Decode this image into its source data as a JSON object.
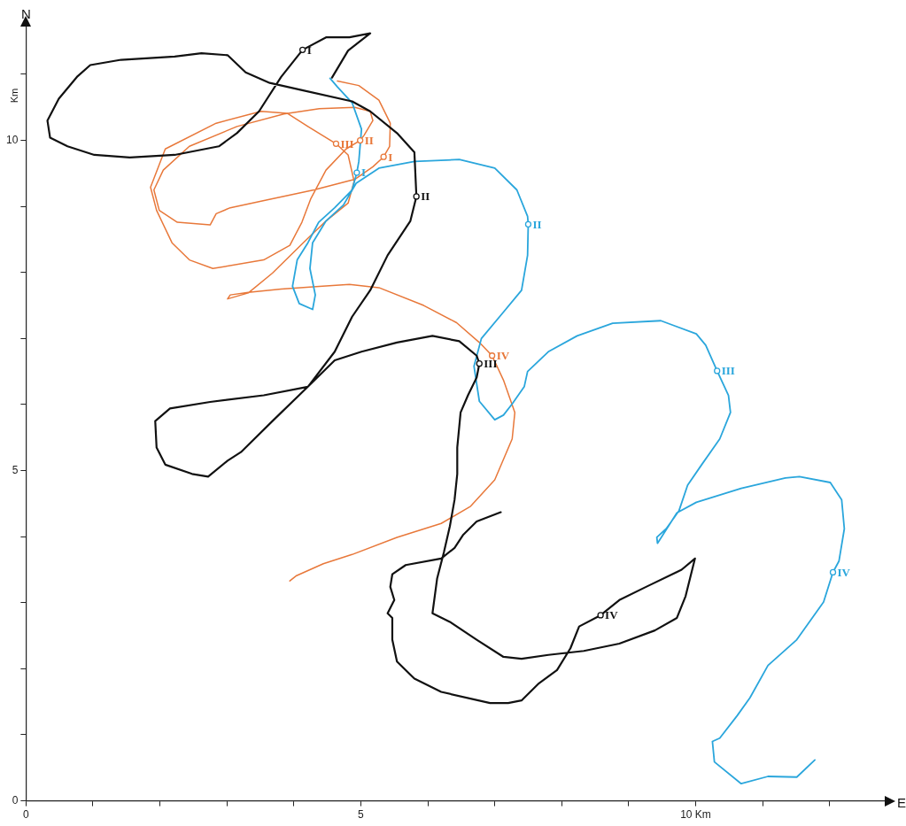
{
  "chart_data": {
    "type": "line",
    "xlabel": "E",
    "ylabel": "N",
    "marker": "none",
    "xlim": [
      0,
      12.85
    ],
    "ylim": [
      0,
      11.75
    ],
    "xticks": [
      0,
      {
        "value": 1,
        "label": null
      },
      {
        "value": 2,
        "label": null
      },
      {
        "value": 3,
        "label": null
      },
      {
        "value": 4,
        "label": null
      },
      5,
      {
        "value": 6,
        "label": null
      },
      {
        "value": 7,
        "label": null
      },
      {
        "value": 8,
        "label": null
      },
      {
        "value": 9,
        "label": null
      },
      {
        "value": 10,
        "label": "10 Km"
      },
      {
        "value": 11,
        "label": null
      },
      {
        "value": 12,
        "label": null
      }
    ],
    "yticks": [
      0,
      {
        "value": 1,
        "label": null
      },
      {
        "value": 2,
        "label": null
      },
      {
        "value": 3,
        "label": null
      },
      {
        "value": 4,
        "label": null
      },
      5,
      {
        "value": 6,
        "label": null
      },
      {
        "value": 7,
        "label": null
      },
      {
        "value": 8,
        "label": null
      },
      {
        "value": 9,
        "label": null
      },
      10,
      {
        "value": 11,
        "label": null
      }
    ],
    "annotations": [
      "Km",
      {
        "text": "I",
        "x": 4.13,
        "y": 11.37
      },
      {
        "text": "II",
        "x": 5.83,
        "y": 9.15
      },
      {
        "text": "III",
        "x": 6.77,
        "y": 6.62
      },
      {
        "text": "IV",
        "x": 8.58,
        "y": 2.81
      },
      {
        "text": "I",
        "x": 4.94,
        "y": 9.51
      },
      {
        "text": "II",
        "x": 7.5,
        "y": 8.73
      },
      {
        "text": "III",
        "x": 10.32,
        "y": 6.51
      },
      {
        "text": "IV",
        "x": 12.05,
        "y": 3.46
      },
      {
        "text": "I",
        "x": 5.34,
        "y": 9.75
      },
      {
        "text": "II",
        "x": 4.99,
        "y": 10.0
      },
      {
        "text": "III",
        "x": 4.63,
        "y": 9.95
      },
      {
        "text": "IV",
        "x": 6.96,
        "y": 6.74
      }
    ],
    "series": [
      {
        "color": "#111111",
        "x": [
          4.57,
          4.81,
          5.14,
          4.83,
          4.48,
          4.13,
          3.81,
          3.48,
          3.15,
          2.88,
          2.22,
          1.55,
          1.02,
          0.62,
          0.36,
          0.32,
          0.49,
          0.76,
          0.96,
          1.42,
          2.22,
          2.62,
          3.01,
          3.28,
          3.64,
          4.08,
          4.87,
          5.14,
          5.54,
          5.8,
          5.83,
          5.74,
          5.4,
          5.14,
          4.87,
          4.61,
          4.21,
          3.68,
          3.21,
          3.01,
          2.72,
          2.48,
          2.08,
          1.95,
          1.93,
          2.15,
          2.75,
          3.55,
          4.21,
          4.61,
          5.01,
          5.54,
          6.07,
          6.47,
          6.73,
          6.77,
          6.73,
          6.6,
          6.49,
          6.44,
          6.44,
          6.4,
          6.33,
          6.24,
          6.14,
          6.07,
          6.33,
          6.73,
          7.13,
          7.4,
          7.8,
          8.33,
          8.86,
          9.39,
          9.72,
          9.85,
          9.99,
          9.79,
          9.26,
          8.86,
          8.58,
          8.26,
          8.13,
          7.93,
          7.66,
          7.4,
          7.2,
          6.93,
          6.2,
          5.8,
          5.54,
          5.47,
          5.47,
          5.4,
          5.5,
          5.44,
          5.47,
          5.67,
          6.2,
          6.4,
          6.53,
          6.73,
          7.09
        ],
        "values": [
          10.95,
          11.36,
          11.62,
          11.56,
          11.56,
          11.37,
          10.96,
          10.44,
          10.11,
          9.91,
          9.78,
          9.74,
          9.78,
          9.91,
          10.04,
          10.3,
          10.63,
          10.96,
          11.14,
          11.22,
          11.27,
          11.32,
          11.29,
          11.03,
          10.87,
          10.77,
          10.59,
          10.44,
          10.11,
          9.82,
          9.15,
          8.78,
          8.26,
          7.73,
          7.33,
          6.8,
          6.27,
          5.75,
          5.28,
          5.15,
          4.91,
          4.95,
          5.09,
          5.35,
          5.75,
          5.94,
          6.04,
          6.14,
          6.27,
          6.67,
          6.8,
          6.94,
          7.04,
          6.96,
          6.74,
          6.62,
          6.41,
          6.14,
          5.88,
          5.35,
          4.95,
          4.56,
          4.16,
          3.76,
          3.37,
          2.84,
          2.71,
          2.44,
          2.18,
          2.15,
          2.21,
          2.27,
          2.38,
          2.58,
          2.77,
          3.1,
          3.67,
          3.5,
          3.24,
          3.04,
          2.81,
          2.64,
          2.31,
          1.98,
          1.78,
          1.52,
          1.48,
          1.48,
          1.65,
          1.85,
          2.11,
          2.44,
          2.77,
          2.84,
          3.04,
          3.24,
          3.43,
          3.57,
          3.67,
          3.83,
          4.03,
          4.23,
          4.37
        ]
      },
      {
        "color": "#2aa6dc",
        "x": [
          4.54,
          4.65,
          4.87,
          5.01,
          4.97,
          4.94,
          4.87,
          4.61,
          4.37,
          4.21,
          4.05,
          3.98,
          4.08,
          4.28,
          4.32,
          4.24,
          4.28,
          4.48,
          4.74,
          4.93,
          5.27,
          5.8,
          6.47,
          7.0,
          7.33,
          7.49,
          7.5,
          7.49,
          7.4,
          7.13,
          6.8,
          6.69,
          6.77,
          7.0,
          7.13,
          7.26,
          7.44,
          7.49,
          7.8,
          8.23,
          8.76,
          9.48,
          10.01,
          10.15,
          10.32,
          10.49,
          10.52,
          10.36,
          10.09,
          9.88,
          9.75,
          9.56,
          9.42,
          9.43,
          9.72,
          10.01,
          10.68,
          11.34,
          11.55,
          12.01,
          12.18,
          12.22,
          12.14,
          12.05,
          11.91,
          11.51,
          11.08,
          10.81,
          10.62,
          10.36,
          10.25,
          10.28,
          10.68,
          11.08,
          11.51,
          11.78
        ],
        "values": [
          10.94,
          10.81,
          10.57,
          10.17,
          9.68,
          9.51,
          9.25,
          8.98,
          8.76,
          8.45,
          8.19,
          7.79,
          7.53,
          7.44,
          7.66,
          8.06,
          8.45,
          8.78,
          9.02,
          9.35,
          9.58,
          9.68,
          9.71,
          9.58,
          9.25,
          8.85,
          8.73,
          8.26,
          7.73,
          7.4,
          7.0,
          6.58,
          6.05,
          5.77,
          5.84,
          6.01,
          6.27,
          6.5,
          6.8,
          7.04,
          7.23,
          7.27,
          7.07,
          6.9,
          6.51,
          6.14,
          5.88,
          5.48,
          5.09,
          4.78,
          4.39,
          4.12,
          3.99,
          3.9,
          4.36,
          4.52,
          4.73,
          4.89,
          4.91,
          4.82,
          4.56,
          4.12,
          3.63,
          3.46,
          3.01,
          2.44,
          2.05,
          1.56,
          1.29,
          0.95,
          0.9,
          0.59,
          0.26,
          0.37,
          0.36,
          0.62
        ]
      },
      {
        "color": "#e8783a",
        "x": [
          4.65,
          4.97,
          5.27,
          5.44,
          5.43,
          5.34,
          5.18,
          4.91,
          4.3,
          3.51,
          3.05,
          2.84,
          2.75,
          2.26,
          1.99,
          1.91,
          2.05,
          2.44,
          3.15,
          3.85,
          4.38,
          4.91,
          5.14,
          5.18,
          5.05,
          4.99,
          4.78,
          4.48,
          4.25,
          4.12,
          3.94,
          3.55,
          2.79,
          2.44,
          2.18,
          1.95,
          1.86,
          2.08,
          2.84,
          3.51,
          3.9,
          4.21,
          4.63,
          4.81,
          4.9,
          4.81,
          4.48,
          4.14,
          3.68,
          3.32,
          3.01,
          3.05,
          3.32,
          3.81,
          4.38,
          4.83,
          5.27,
          5.94,
          6.43,
          6.77,
          6.96,
          7.13,
          7.3,
          7.26,
          7.0,
          6.64,
          6.2,
          5.54,
          4.87,
          4.44,
          4.04,
          3.94
        ],
        "values": [
          10.9,
          10.83,
          10.61,
          10.26,
          9.91,
          9.75,
          9.6,
          9.41,
          9.25,
          9.08,
          8.98,
          8.89,
          8.72,
          8.76,
          8.94,
          9.25,
          9.55,
          9.91,
          10.21,
          10.4,
          10.48,
          10.5,
          10.44,
          10.3,
          10.08,
          10.0,
          9.87,
          9.55,
          9.11,
          8.76,
          8.41,
          8.19,
          8.06,
          8.19,
          8.45,
          8.94,
          9.29,
          9.87,
          10.26,
          10.44,
          10.41,
          10.21,
          9.95,
          9.78,
          9.38,
          9.05,
          8.78,
          8.45,
          7.99,
          7.69,
          7.6,
          7.66,
          7.7,
          7.75,
          7.79,
          7.82,
          7.77,
          7.5,
          7.24,
          6.94,
          6.74,
          6.37,
          5.88,
          5.48,
          4.86,
          4.46,
          4.2,
          3.99,
          3.73,
          3.59,
          3.41,
          3.33
        ]
      }
    ]
  }
}
